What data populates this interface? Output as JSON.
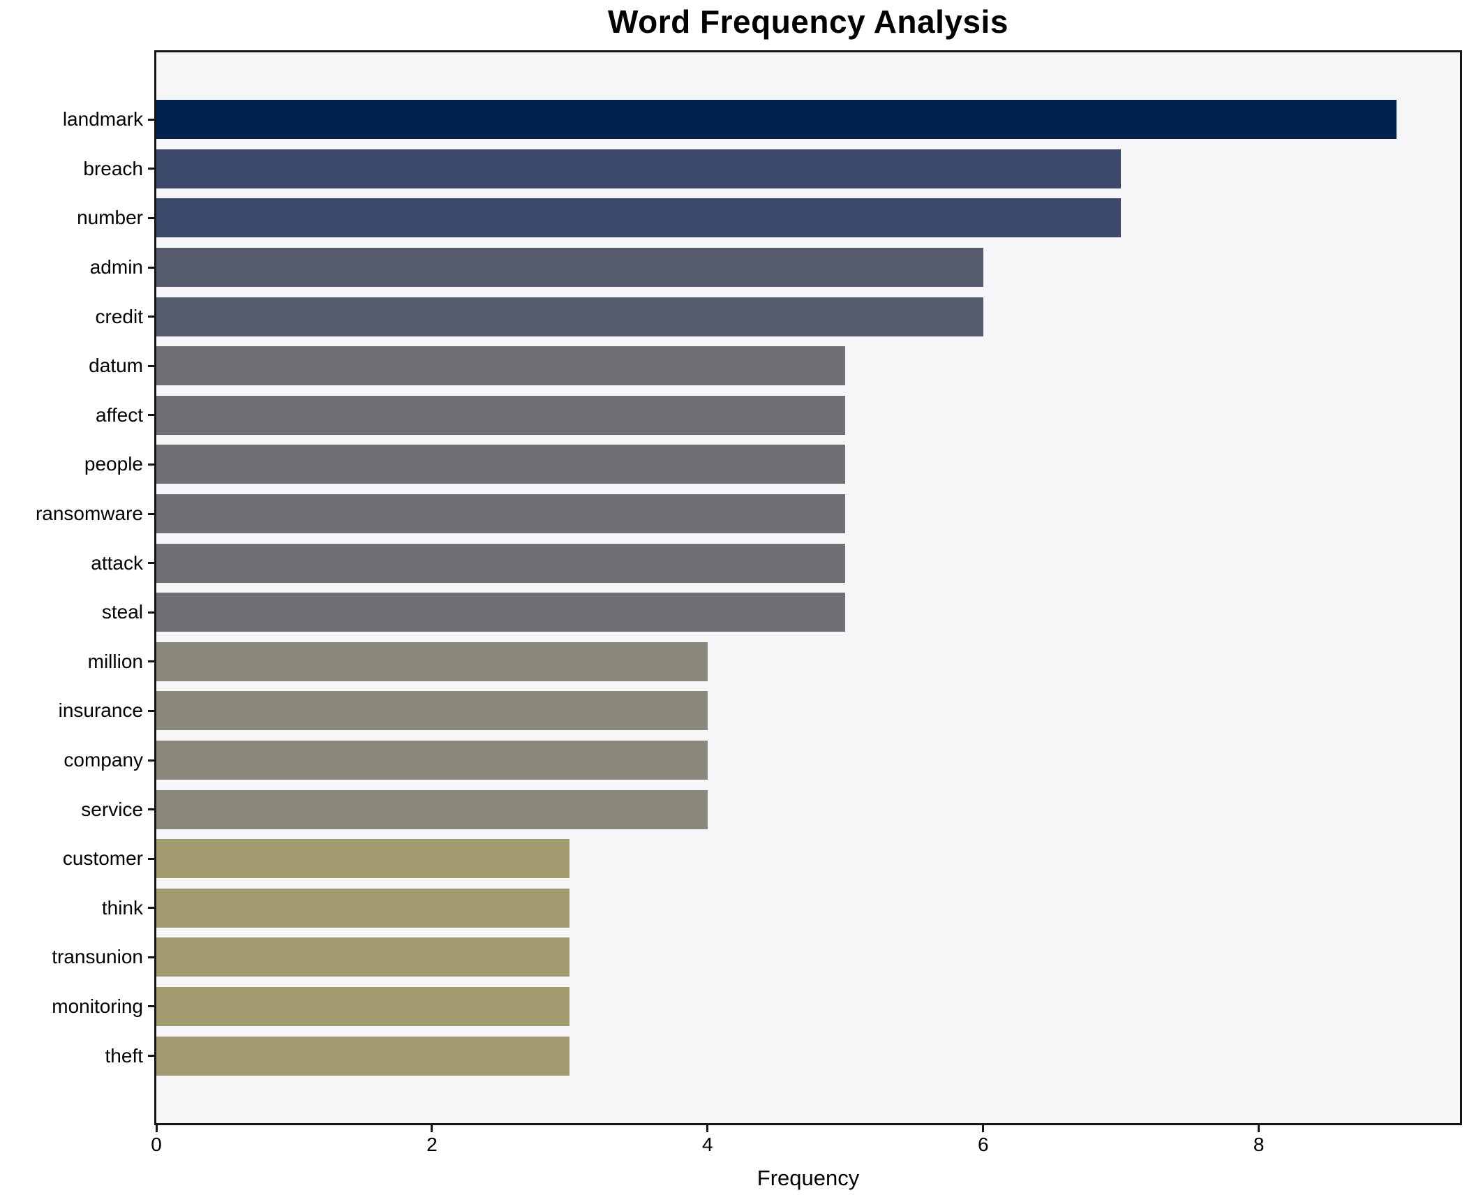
{
  "chart_data": {
    "type": "bar",
    "orientation": "horizontal",
    "title": "Word Frequency Analysis",
    "xlabel": "Frequency",
    "xlim": [
      0,
      9.46
    ],
    "xticks": [
      "0",
      "2",
      "4",
      "6",
      "8"
    ],
    "grid": false,
    "plot_background": "#f6f6f8",
    "spine_color": "#15151a",
    "categories": [
      "landmark",
      "breach",
      "number",
      "admin",
      "credit",
      "datum",
      "affect",
      "people",
      "ransomware",
      "attack",
      "steal",
      "million",
      "insurance",
      "company",
      "service",
      "customer",
      "think",
      "transunion",
      "monitoring",
      "theft"
    ],
    "values": [
      9,
      7,
      7,
      6,
      6,
      5,
      5,
      5,
      5,
      5,
      5,
      4,
      4,
      4,
      4,
      3,
      3,
      3,
      3,
      3
    ],
    "bar_colors": [
      "#01224e",
      "#3d4a6b",
      "#3d4a6b",
      "#575d6e",
      "#575d6e",
      "#6f7073",
      "#6f7073",
      "#6f7073",
      "#6f7073",
      "#6f7073",
      "#6f7073",
      "#8a877b",
      "#8a877b",
      "#8a877b",
      "#8a877b",
      "#a39b70",
      "#a39b70",
      "#a39b70",
      "#a39b70",
      "#a39b70"
    ]
  }
}
